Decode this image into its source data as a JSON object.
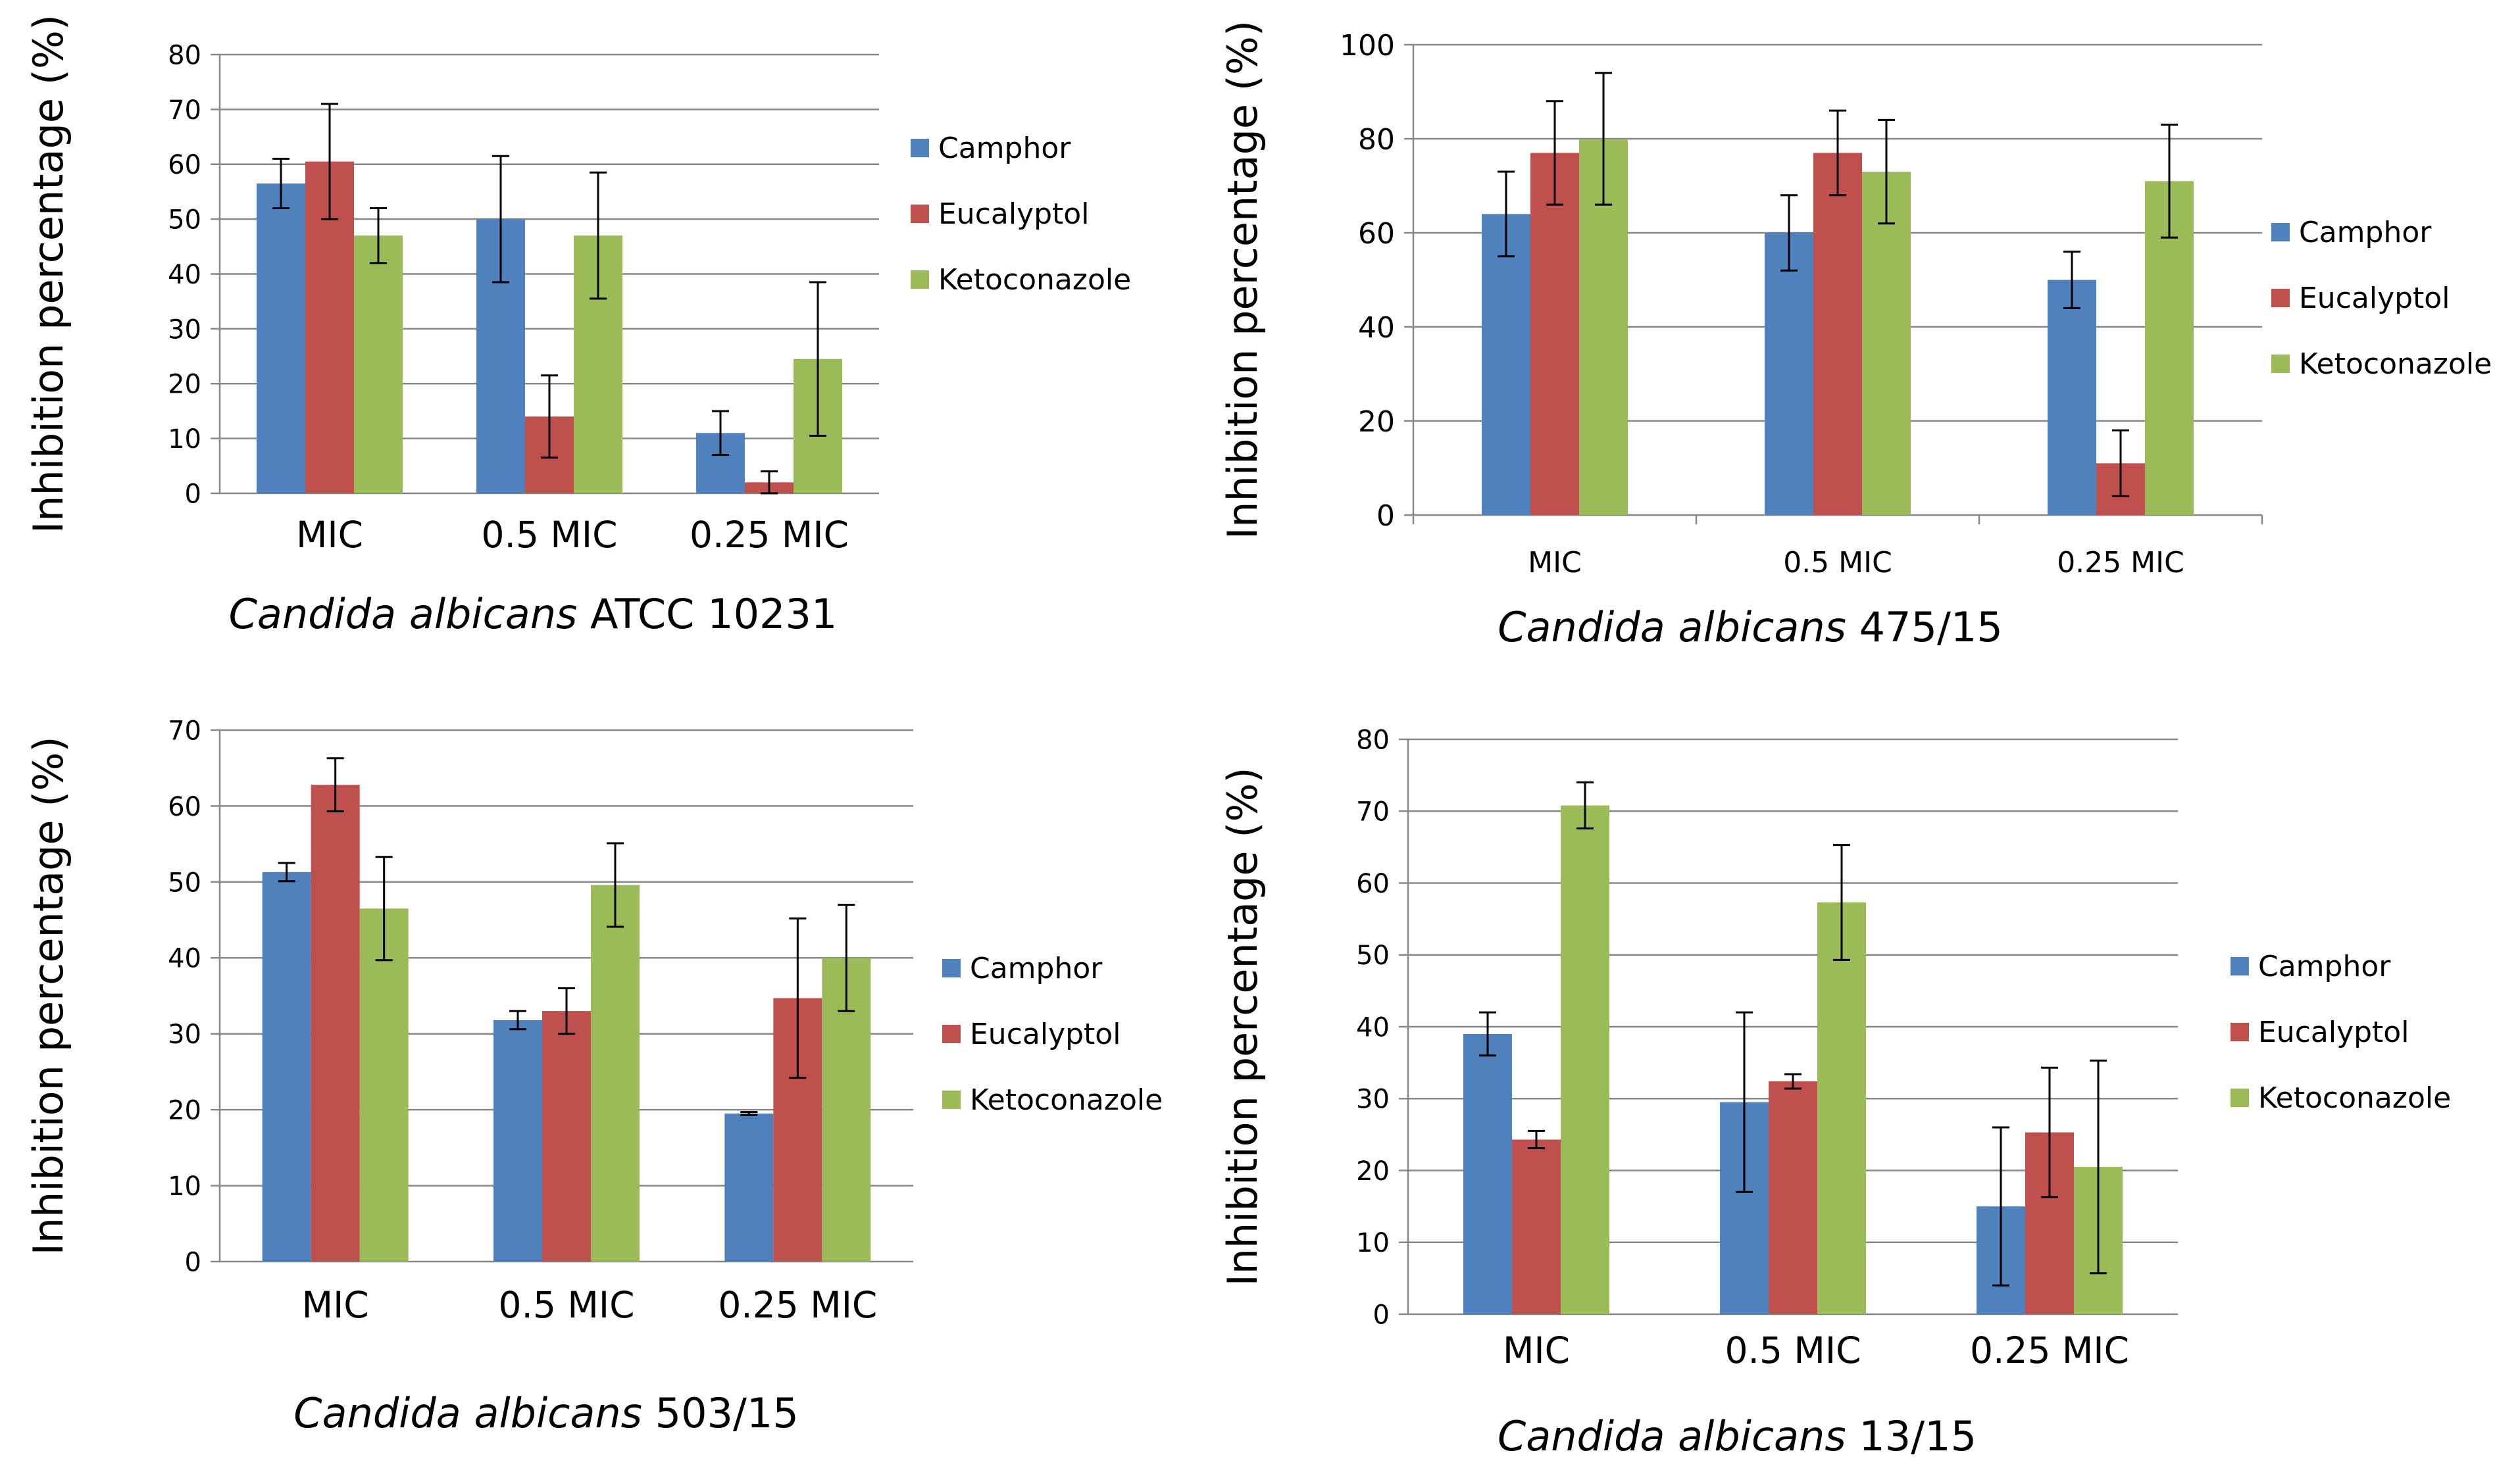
{
  "chart_data": [
    {
      "type": "bar",
      "title": "Candida albicans ATCC 10231",
      "title_italic": "Candida albicans",
      "title_rest": " ATCC 10231",
      "ylabel": "Inhibition percentage (%)",
      "xlabel": "",
      "ylim": [
        0,
        80
      ],
      "yticks": [
        0,
        10,
        20,
        30,
        40,
        50,
        60,
        70,
        80
      ],
      "categories": [
        "MIC",
        "0.5 MIC",
        "0.25 MIC"
      ],
      "series": [
        {
          "name": "Camphor",
          "color": "#4F81BD",
          "values": [
            56.5,
            50,
            11
          ],
          "errors": [
            4.5,
            11.5,
            4
          ]
        },
        {
          "name": "Eucalyptol",
          "color": "#C0504D",
          "values": [
            60.5,
            14,
            2
          ],
          "errors": [
            10.5,
            7.5,
            2
          ]
        },
        {
          "name": "Ketoconazole",
          "color": "#9BBB59",
          "values": [
            47,
            47,
            24.5
          ],
          "errors": [
            5,
            11.5,
            14
          ]
        }
      ],
      "grid": true,
      "legend": "right"
    },
    {
      "type": "bar",
      "title": "Candida albicans 475/15",
      "title_italic": "Candida albicans",
      "title_rest": " 475/15",
      "ylabel": "Inhibition percentage (%)",
      "xlabel": "",
      "ylim": [
        0,
        100
      ],
      "yticks": [
        0,
        20,
        40,
        60,
        80,
        100
      ],
      "categories": [
        "MIC",
        "0.5 MIC",
        "0.25 MIC"
      ],
      "series": [
        {
          "name": "Camphor",
          "color": "#4F81BD",
          "values": [
            64,
            60,
            50
          ],
          "errors": [
            9,
            8,
            6
          ]
        },
        {
          "name": "Eucalyptol",
          "color": "#C0504D",
          "values": [
            77,
            77,
            11
          ],
          "errors": [
            11,
            9,
            7
          ]
        },
        {
          "name": "Ketoconazole",
          "color": "#9BBB59",
          "values": [
            80,
            73,
            71
          ],
          "errors": [
            14,
            11,
            12
          ]
        }
      ],
      "grid": true,
      "legend": "right"
    },
    {
      "type": "bar",
      "title": "Candida albicans 503/15",
      "title_italic": "Candida albicans",
      "title_rest": " 503/15",
      "ylabel": "Inhibition percentage (%)",
      "xlabel": "",
      "ylim": [
        0,
        70
      ],
      "yticks": [
        0,
        10,
        20,
        30,
        40,
        50,
        60,
        70
      ],
      "categories": [
        "MIC",
        "0.5 MIC",
        "0.25 MIC"
      ],
      "series": [
        {
          "name": "Camphor",
          "color": "#4F81BD",
          "values": [
            51.3,
            31.8,
            19.5
          ],
          "errors": [
            1.2,
            1.2,
            0.2
          ]
        },
        {
          "name": "Eucalyptol",
          "color": "#C0504D",
          "values": [
            62.8,
            33,
            34.7
          ],
          "errors": [
            3.5,
            3,
            10.5
          ]
        },
        {
          "name": "Ketoconazole",
          "color": "#9BBB59",
          "values": [
            46.5,
            49.6,
            40
          ],
          "errors": [
            6.8,
            5.5,
            7
          ]
        }
      ],
      "grid": true,
      "legend": "right"
    },
    {
      "type": "bar",
      "title": "Candida albicans 13/15",
      "title_italic": "Candida albicans",
      "title_rest": " 13/15",
      "ylabel": "Inhibition percentage (%)",
      "xlabel": "",
      "ylim": [
        0,
        80
      ],
      "yticks": [
        0,
        10,
        20,
        30,
        40,
        50,
        60,
        70,
        80
      ],
      "categories": [
        "MIC",
        "0.5 MIC",
        "0.25 MIC"
      ],
      "series": [
        {
          "name": "Camphor",
          "color": "#4F81BD",
          "values": [
            39,
            29.5,
            15
          ],
          "errors": [
            3,
            12.5,
            11
          ]
        },
        {
          "name": "Eucalyptol",
          "color": "#C0504D",
          "values": [
            24.3,
            32.4,
            25.3
          ],
          "errors": [
            1.2,
            1,
            9
          ]
        },
        {
          "name": "Ketoconazole",
          "color": "#9BBB59",
          "values": [
            70.8,
            57.3,
            20.5
          ],
          "errors": [
            3.2,
            8,
            14.8
          ]
        }
      ],
      "grid": true,
      "legend": "right"
    }
  ]
}
